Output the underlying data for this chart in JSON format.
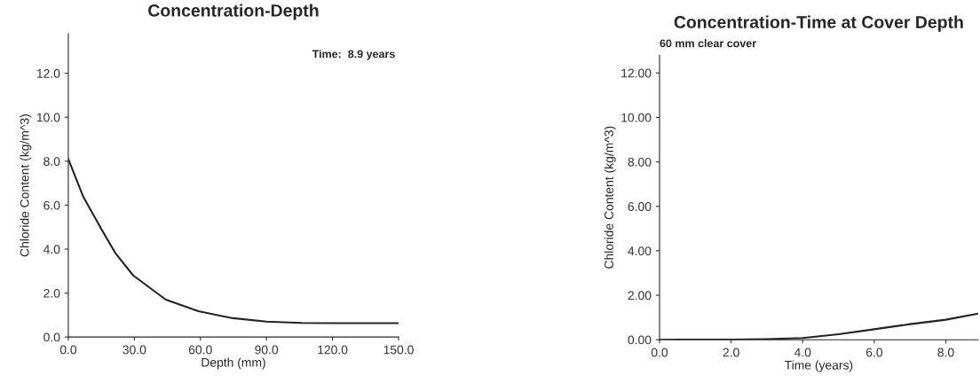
{
  "chart_data": [
    {
      "type": "line",
      "title": "Concentration-Depth",
      "xlabel": "Depth (mm)",
      "ylabel": "Chloride Content (kg/m^3)",
      "annotations": [
        "Time:  8.9 years"
      ],
      "xlim": [
        0,
        150
      ],
      "xticks": [
        {
          "value": 0,
          "label": "0.0"
        },
        {
          "value": 30,
          "label": "30.0"
        },
        {
          "value": 60,
          "label": "60.0"
        },
        {
          "value": 90,
          "label": "90.0"
        },
        {
          "value": 120,
          "label": "120.0"
        },
        {
          "value": 150,
          "label": "150.0"
        }
      ],
      "ylim": [
        0,
        13.8
      ],
      "yticks": [
        {
          "value": 0,
          "label": "0.0"
        },
        {
          "value": 2,
          "label": "2.0"
        },
        {
          "value": 4,
          "label": "4.0"
        },
        {
          "value": 6,
          "label": "6.0"
        },
        {
          "value": 8,
          "label": "8.0"
        },
        {
          "value": 10,
          "label": "10.0"
        },
        {
          "value": 12,
          "label": "12.0"
        }
      ],
      "grid": false,
      "marker": "none",
      "series": [
        {
          "color": "#222222",
          "x": [
            0,
            6.7,
            14.8,
            21.5,
            29.5,
            44.3,
            59.1,
            73.9,
            90,
            106,
            120,
            150
          ],
          "values": [
            8.1,
            6.4,
            4.95,
            3.8,
            2.8,
            1.7,
            1.18,
            0.87,
            0.7,
            0.64,
            0.63,
            0.63
          ]
        }
      ]
    },
    {
      "type": "line",
      "title": "Concentration-Time at Cover Depth",
      "subtitle": "60 mm clear cover",
      "xlabel": "Time (years)",
      "ylabel": "Chloride Content (kg/m^3)",
      "xlim": [
        0,
        8.9
      ],
      "xticks": [
        {
          "value": 0,
          "label": "0.0"
        },
        {
          "value": 2,
          "label": "2.0"
        },
        {
          "value": 4,
          "label": "4.0"
        },
        {
          "value": 6,
          "label": "6.0"
        },
        {
          "value": 8,
          "label": "8.0"
        }
      ],
      "ylim": [
        0,
        12.8
      ],
      "yticks": [
        {
          "value": 0,
          "label": "0.00"
        },
        {
          "value": 2,
          "label": "2.00"
        },
        {
          "value": 4,
          "label": "4.00"
        },
        {
          "value": 6,
          "label": "6.00"
        },
        {
          "value": 8,
          "label": "8.00"
        },
        {
          "value": 10,
          "label": "10.00"
        },
        {
          "value": 12,
          "label": "12.00"
        }
      ],
      "grid": false,
      "marker": "none",
      "series": [
        {
          "color": "#222222",
          "x": [
            0,
            2,
            3,
            4,
            5,
            6,
            7,
            8,
            8.9
          ],
          "values": [
            0,
            0.01,
            0.03,
            0.08,
            0.25,
            0.47,
            0.7,
            0.9,
            1.17
          ]
        }
      ]
    }
  ]
}
